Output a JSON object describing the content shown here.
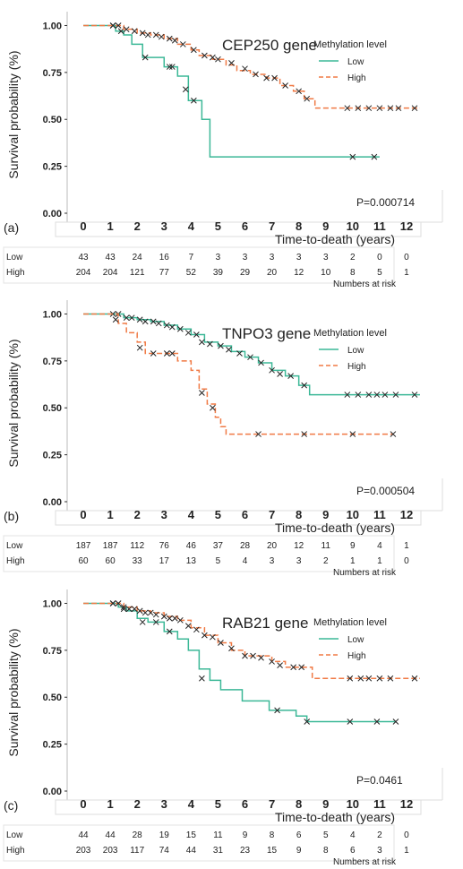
{
  "chart_data": [
    {
      "type": "line",
      "panel_label": "(a)",
      "gene_title": "CEP250 gene",
      "ylabel": "Survival probability (%)",
      "xlabel": "Time-to-death (years)",
      "xlim": [
        -0.6,
        12.6
      ],
      "ylim": [
        0,
        1.05
      ],
      "x_ticks": [
        "0",
        "1",
        "2",
        "3",
        "4",
        "5",
        "6",
        "7",
        "8",
        "9",
        "10",
        "11",
        "12"
      ],
      "y_ticks": [
        "0.00",
        "0.25",
        "0.50",
        "0.75",
        "1.00"
      ],
      "legend_title": "Methylation level",
      "p_value": "P=0.000714",
      "risk_title": "Numbers at risk",
      "colors": {
        "low": "#3cb897",
        "high": "#f07a45"
      },
      "series": [
        {
          "name": "Low",
          "style": "solid",
          "x": [
            0,
            1.0,
            1.2,
            1.5,
            1.8,
            2.2,
            2.6,
            3.0,
            3.5,
            3.9,
            4.4,
            4.7,
            11.0
          ],
          "y": [
            1.0,
            1.0,
            0.97,
            0.95,
            0.9,
            0.83,
            0.83,
            0.78,
            0.73,
            0.6,
            0.5,
            0.3,
            0.3
          ],
          "censor_x": [
            1.1,
            1.4,
            2.3,
            3.2,
            3.3,
            3.8,
            4.1,
            10.0,
            10.8
          ],
          "censor_y": [
            1.0,
            0.97,
            0.83,
            0.78,
            0.78,
            0.66,
            0.6,
            0.3,
            0.3
          ]
        },
        {
          "name": "High",
          "style": "dashed",
          "x": [
            0,
            1.0,
            1.5,
            2.0,
            2.5,
            3.0,
            3.5,
            4.0,
            4.3,
            4.8,
            5.3,
            5.7,
            6.2,
            6.8,
            7.3,
            7.8,
            8.2,
            8.6,
            12.5
          ],
          "y": [
            1.0,
            1.0,
            0.98,
            0.96,
            0.95,
            0.93,
            0.9,
            0.87,
            0.84,
            0.82,
            0.79,
            0.76,
            0.74,
            0.72,
            0.68,
            0.65,
            0.61,
            0.56,
            0.56
          ],
          "censor_x": [
            1.1,
            1.3,
            1.6,
            1.9,
            2.2,
            2.4,
            2.7,
            2.9,
            3.2,
            3.4,
            3.7,
            4.1,
            4.5,
            4.8,
            5.0,
            5.5,
            6.0,
            6.4,
            6.8,
            7.1,
            7.5,
            8.0,
            8.3,
            9.8,
            10.2,
            10.6,
            11.0,
            11.4,
            11.7,
            12.3
          ],
          "censor_y": [
            1.0,
            1.0,
            0.98,
            0.97,
            0.96,
            0.95,
            0.95,
            0.94,
            0.93,
            0.92,
            0.9,
            0.87,
            0.84,
            0.83,
            0.82,
            0.8,
            0.77,
            0.74,
            0.72,
            0.72,
            0.68,
            0.65,
            0.61,
            0.56,
            0.56,
            0.56,
            0.56,
            0.56,
            0.56,
            0.56
          ]
        }
      ],
      "risk_table": {
        "x": [
          "0",
          "1",
          "2",
          "3",
          "4",
          "5",
          "6",
          "7",
          "8",
          "9",
          "10",
          "11",
          "12"
        ],
        "rows": [
          {
            "label": "Low",
            "values": [
              "43",
              "43",
              "24",
              "16",
              "7",
              "3",
              "3",
              "3",
              "3",
              "3",
              "2",
              "0",
              "0"
            ]
          },
          {
            "label": "High",
            "values": [
              "204",
              "204",
              "121",
              "77",
              "52",
              "39",
              "29",
              "20",
              "12",
              "10",
              "8",
              "5",
              "1"
            ]
          }
        ]
      }
    },
    {
      "type": "line",
      "panel_label": "(b)",
      "gene_title": "TNPO3 gene",
      "ylabel": "Survival probability (%)",
      "xlabel": "Time-to-death (years)",
      "xlim": [
        -0.6,
        12.6
      ],
      "ylim": [
        0,
        1.05
      ],
      "x_ticks": [
        "0",
        "1",
        "2",
        "3",
        "4",
        "5",
        "6",
        "7",
        "8",
        "9",
        "10",
        "11",
        "12"
      ],
      "y_ticks": [
        "0.00",
        "0.25",
        "0.50",
        "0.75",
        "1.00"
      ],
      "legend_title": "Methylation level",
      "p_value": "P=0.000504",
      "risk_title": "Numbers at risk",
      "colors": {
        "low": "#3cb897",
        "high": "#f07a45"
      },
      "series": [
        {
          "name": "Low",
          "style": "solid",
          "x": [
            0,
            1.0,
            1.5,
            2.0,
            2.5,
            3.0,
            3.5,
            4.0,
            4.5,
            5.0,
            5.5,
            6.0,
            6.5,
            7.0,
            7.5,
            8.0,
            8.4,
            12.5
          ],
          "y": [
            1.0,
            1.0,
            0.98,
            0.97,
            0.96,
            0.94,
            0.92,
            0.89,
            0.85,
            0.83,
            0.8,
            0.77,
            0.74,
            0.7,
            0.67,
            0.62,
            0.57,
            0.57
          ],
          "censor_x": [
            1.1,
            1.3,
            1.6,
            1.8,
            2.1,
            2.3,
            2.6,
            2.8,
            3.1,
            3.3,
            3.6,
            3.9,
            4.2,
            4.4,
            4.7,
            5.1,
            5.4,
            5.8,
            6.2,
            6.6,
            7.0,
            7.3,
            7.7,
            8.2,
            9.8,
            10.2,
            10.6,
            10.9,
            11.2,
            11.6,
            12.3
          ],
          "censor_y": [
            1.0,
            1.0,
            0.98,
            0.98,
            0.97,
            0.96,
            0.96,
            0.95,
            0.94,
            0.93,
            0.92,
            0.9,
            0.89,
            0.85,
            0.84,
            0.83,
            0.81,
            0.79,
            0.77,
            0.74,
            0.7,
            0.68,
            0.67,
            0.62,
            0.57,
            0.57,
            0.57,
            0.57,
            0.57,
            0.57,
            0.57
          ]
        },
        {
          "name": "High",
          "style": "dashed",
          "x": [
            0,
            1.0,
            1.3,
            1.6,
            2.0,
            2.3,
            3.0,
            3.5,
            4.0,
            4.3,
            4.6,
            4.9,
            5.1,
            5.3,
            11.5
          ],
          "y": [
            1.0,
            1.0,
            0.95,
            0.9,
            0.85,
            0.79,
            0.79,
            0.75,
            0.7,
            0.6,
            0.52,
            0.45,
            0.4,
            0.36,
            0.36
          ],
          "censor_x": [
            1.2,
            2.1,
            2.6,
            3.1,
            3.3,
            4.4,
            4.8,
            6.5,
            8.2,
            10.0,
            11.5
          ],
          "censor_y": [
            0.97,
            0.82,
            0.79,
            0.79,
            0.79,
            0.58,
            0.5,
            0.36,
            0.36,
            0.36,
            0.36
          ]
        }
      ],
      "risk_table": {
        "x": [
          "0",
          "1",
          "2",
          "3",
          "4",
          "5",
          "6",
          "7",
          "8",
          "9",
          "10",
          "11",
          "12"
        ],
        "rows": [
          {
            "label": "Low",
            "values": [
              "187",
              "187",
              "112",
              "76",
              "46",
              "37",
              "28",
              "20",
              "12",
              "11",
              "9",
              "4",
              "1"
            ]
          },
          {
            "label": "High",
            "values": [
              "60",
              "60",
              "33",
              "17",
              "13",
              "5",
              "4",
              "3",
              "3",
              "2",
              "1",
              "1",
              "0"
            ]
          }
        ]
      }
    },
    {
      "type": "line",
      "panel_label": "(c)",
      "gene_title": "RAB21 gene",
      "ylabel": "Survival probability (%)",
      "xlabel": "Time-to-death (years)",
      "xlim": [
        -0.6,
        12.6
      ],
      "ylim": [
        0,
        1.05
      ],
      "x_ticks": [
        "0",
        "1",
        "2",
        "3",
        "4",
        "5",
        "6",
        "7",
        "8",
        "9",
        "10",
        "11",
        "12"
      ],
      "y_ticks": [
        "0.00",
        "0.25",
        "0.50",
        "0.75",
        "1.00"
      ],
      "legend_title": "Methylation level",
      "p_value": "P=0.0461",
      "risk_title": "Numbers at risk",
      "colors": {
        "low": "#3cb897",
        "high": "#f07a45"
      },
      "series": [
        {
          "name": "Low",
          "style": "solid",
          "x": [
            0,
            1.0,
            1.3,
            1.6,
            2.0,
            2.4,
            3.0,
            3.5,
            3.9,
            4.3,
            4.7,
            5.1,
            5.9,
            6.9,
            7.9,
            8.3,
            11.6
          ],
          "y": [
            1.0,
            1.0,
            0.98,
            0.96,
            0.92,
            0.9,
            0.85,
            0.81,
            0.75,
            0.65,
            0.59,
            0.54,
            0.48,
            0.43,
            0.4,
            0.37,
            0.37
          ],
          "censor_x": [
            1.1,
            1.5,
            2.2,
            2.7,
            3.2,
            4.4,
            7.2,
            8.3,
            9.9,
            10.9,
            11.6
          ],
          "censor_y": [
            1.0,
            0.97,
            0.9,
            0.9,
            0.85,
            0.6,
            0.43,
            0.37,
            0.37,
            0.37,
            0.37
          ]
        },
        {
          "name": "High",
          "style": "dashed",
          "x": [
            0,
            1.0,
            1.5,
            2.0,
            2.5,
            3.0,
            3.5,
            4.0,
            4.5,
            5.0,
            5.5,
            6.0,
            7.0,
            7.5,
            8.5,
            12.5
          ],
          "y": [
            1.0,
            1.0,
            0.98,
            0.96,
            0.95,
            0.93,
            0.91,
            0.87,
            0.83,
            0.79,
            0.75,
            0.72,
            0.69,
            0.66,
            0.6,
            0.6
          ],
          "censor_x": [
            1.1,
            1.3,
            1.5,
            1.7,
            1.9,
            2.1,
            2.3,
            2.5,
            2.7,
            3.0,
            3.2,
            3.4,
            3.6,
            3.9,
            4.2,
            4.5,
            4.8,
            5.1,
            5.5,
            6.0,
            6.3,
            6.6,
            7.0,
            7.3,
            7.8,
            8.1,
            9.9,
            10.3,
            10.6,
            11.0,
            11.4,
            12.3
          ],
          "censor_y": [
            1.0,
            1.0,
            0.98,
            0.97,
            0.97,
            0.96,
            0.95,
            0.95,
            0.94,
            0.93,
            0.92,
            0.92,
            0.91,
            0.88,
            0.86,
            0.83,
            0.82,
            0.79,
            0.76,
            0.72,
            0.72,
            0.71,
            0.69,
            0.67,
            0.66,
            0.66,
            0.6,
            0.6,
            0.6,
            0.6,
            0.6,
            0.6
          ]
        }
      ],
      "risk_table": {
        "x": [
          "0",
          "1",
          "2",
          "3",
          "4",
          "5",
          "6",
          "7",
          "8",
          "9",
          "10",
          "11",
          "12"
        ],
        "rows": [
          {
            "label": "Low",
            "values": [
              "44",
              "44",
              "28",
              "19",
              "15",
              "11",
              "9",
              "8",
              "6",
              "5",
              "4",
              "2",
              "0"
            ]
          },
          {
            "label": "High",
            "values": [
              "203",
              "203",
              "117",
              "74",
              "44",
              "31",
              "23",
              "15",
              "9",
              "8",
              "6",
              "3",
              "1"
            ]
          }
        ]
      }
    }
  ]
}
